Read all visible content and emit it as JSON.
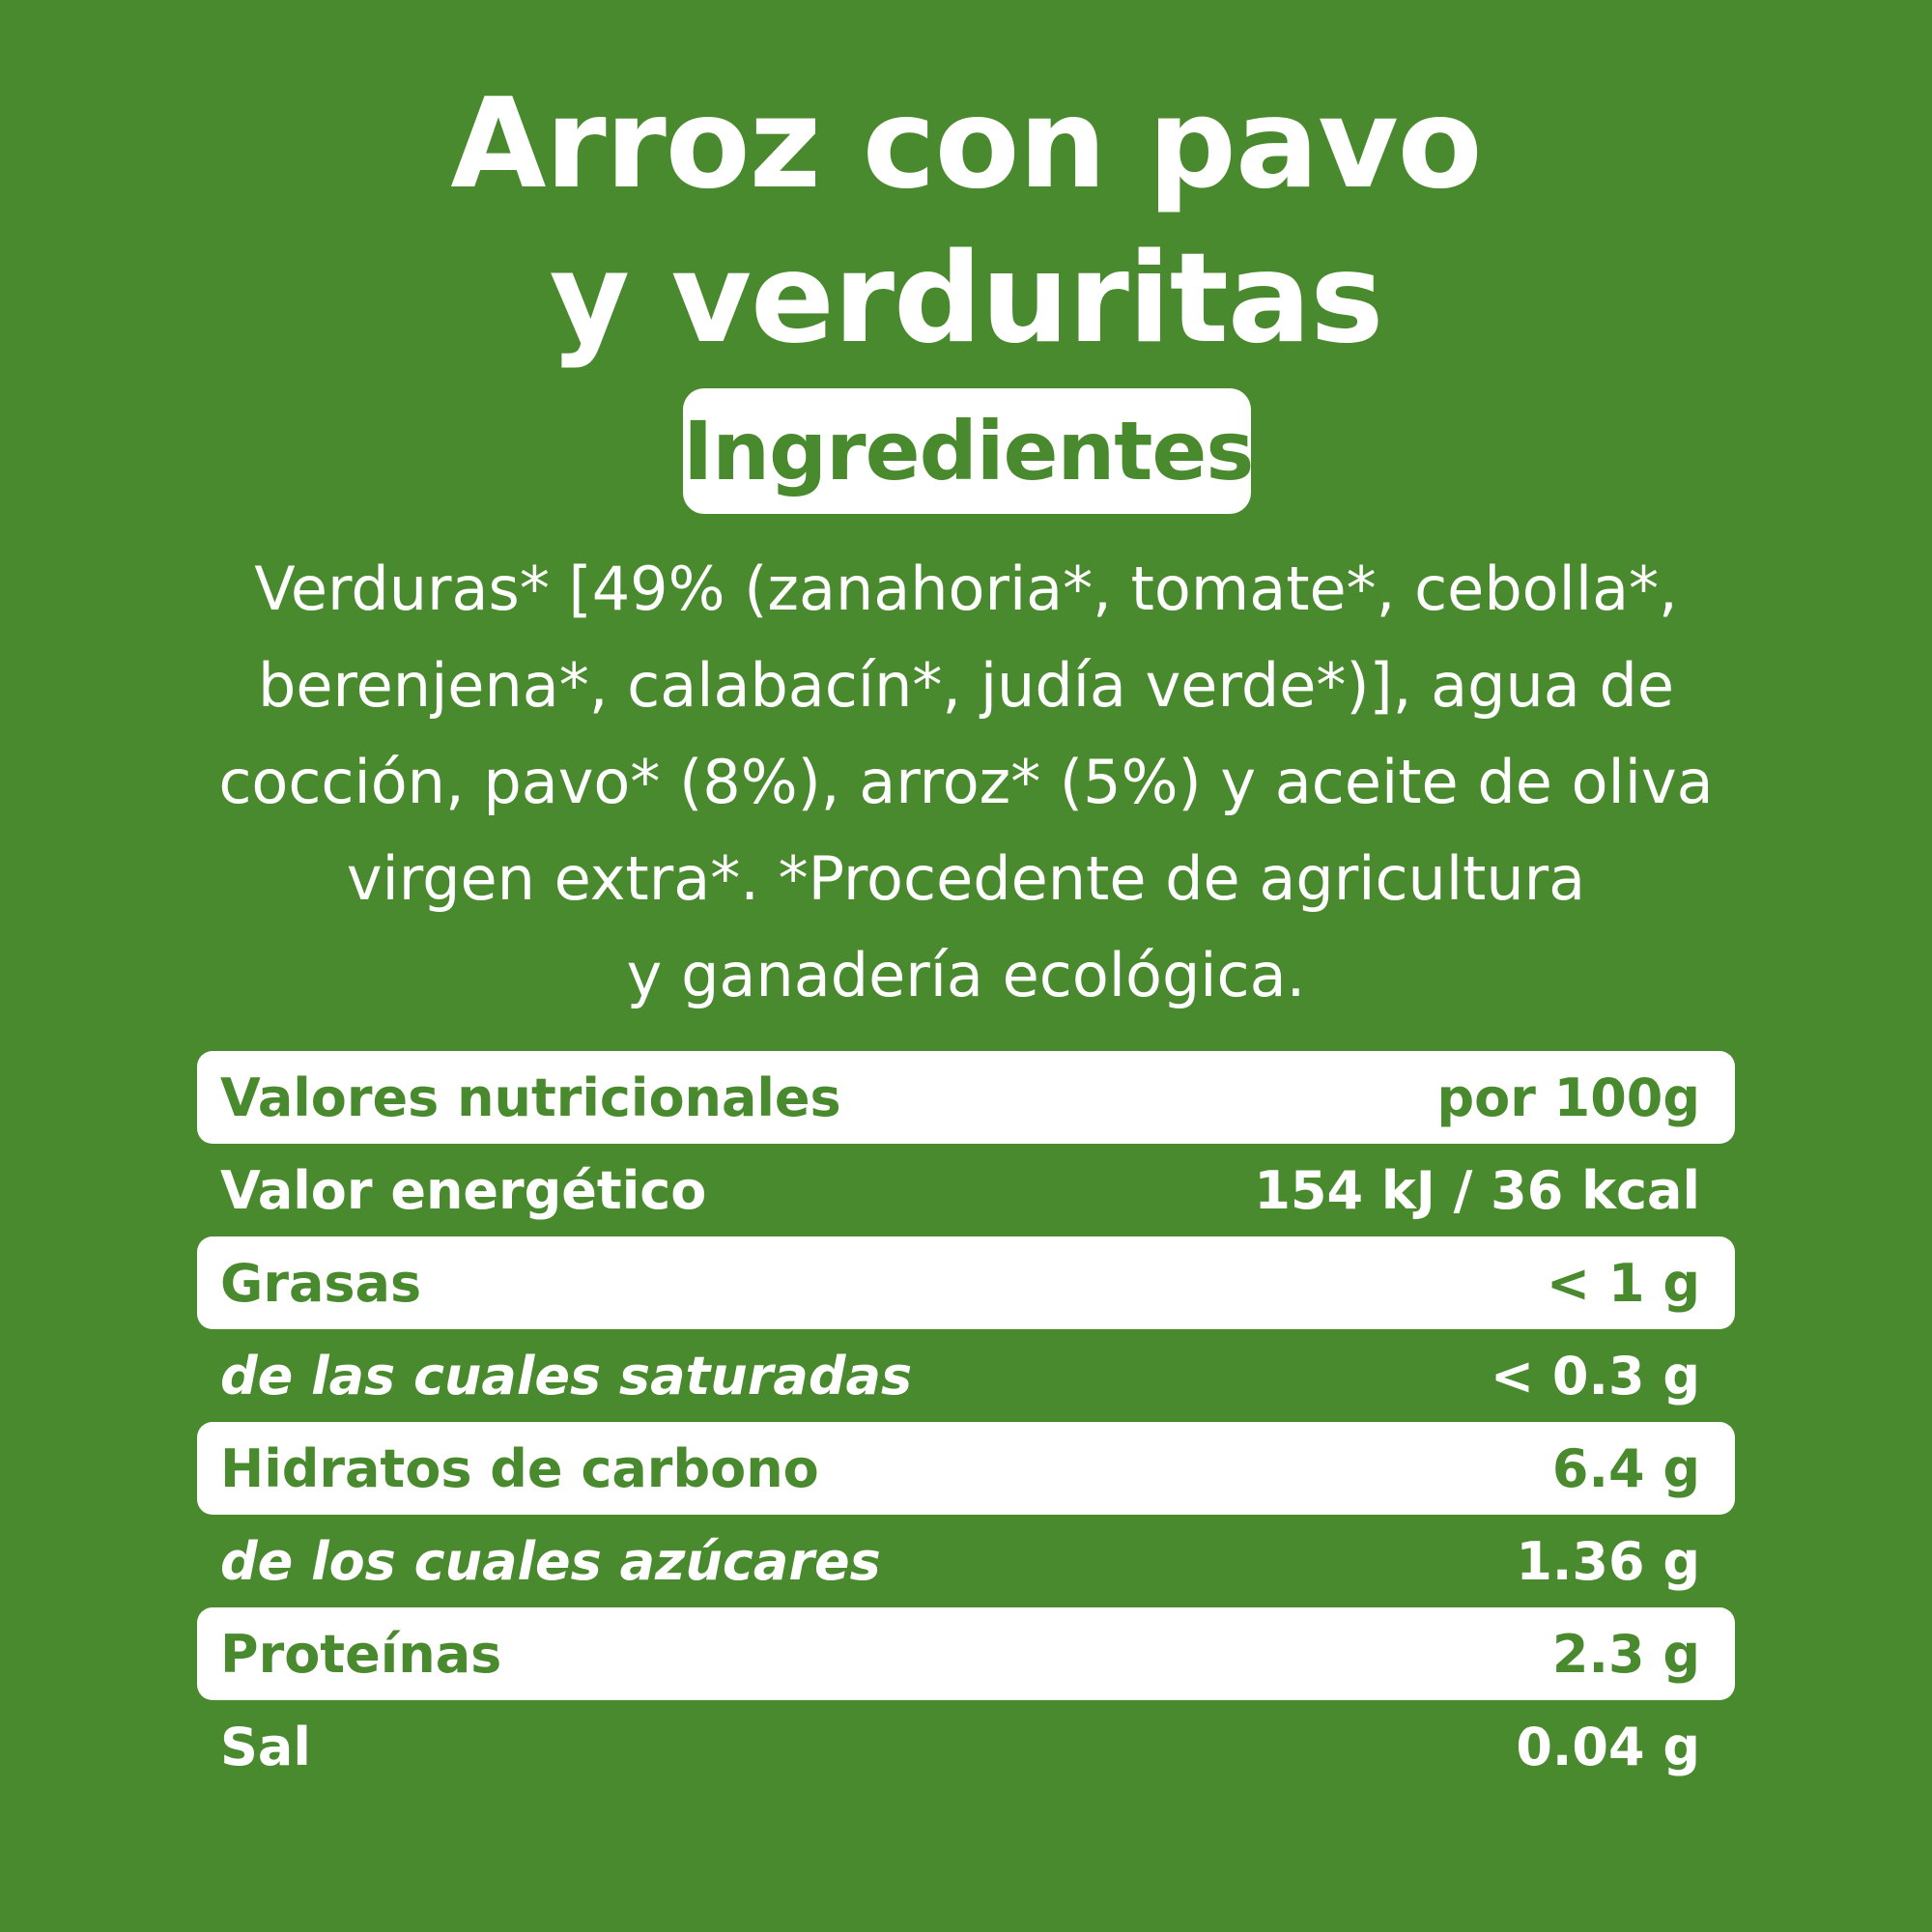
{
  "title": {
    "line1": "Arroz con pavo",
    "line2": "y verduritas"
  },
  "badge": "Ingredientes",
  "ingredients": [
    "Verduras* [49% (zanahoria*, tomate*, cebolla*,",
    "berenjena*, calabacín*, judía verde*)], agua de",
    "cocción, pavo* (8%), arroz* (5%) y aceite de oliva",
    "virgen extra*. *Procedente de agricultura",
    "y ganadería ecológica."
  ],
  "nutrition": {
    "rows": [
      {
        "label": "Valores nutricionales",
        "value": "por 100g"
      },
      {
        "label": "Valor energético",
        "value": "154 kJ / 36 kcal"
      },
      {
        "label": "Grasas",
        "value": "< 1 g"
      },
      {
        "label": "de las cuales saturadas",
        "value": "< 0.3 g"
      },
      {
        "label": "Hidratos de carbono",
        "value": "6.4 g"
      },
      {
        "label": "de los cuales azúcares",
        "value": "1.36 g"
      },
      {
        "label": "Proteínas",
        "value": "2.3 g"
      },
      {
        "label": "Sal",
        "value": "0.04 g"
      }
    ]
  },
  "colors": {
    "background": "#4a8a2e",
    "highlight": "#ffffff"
  }
}
